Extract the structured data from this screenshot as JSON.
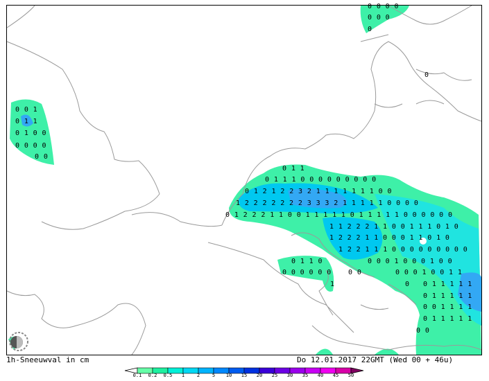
{
  "map": {
    "grid_rows": [
      "0 0 0 0",
      "0 0 0",
      "0",
      "0",
      "0 0 1",
      "0 1 1",
      "0 1 0 0",
      "0 0 0 0",
      "0 0",
      "0 1 1",
      "0 1 1 1 0 0 0 0 0 0 0 0 0",
      "0 1 2 1 2 2 3 2 1 1 1 1 1 1 1 0 0",
      "1 2 2 2 2 2 2 2 3 3 3 2 1 1 1 1 1 0 0 0 0",
      "0 1 2 2 2 1 1 0 0 1 1 1 1 1 0 1 1 1 1 1 0 0 0 0 0 0",
      "1 1 2 2 2 1 1 0 0 1 1 1 0 1 0",
      "1 2 2 2 1 1 0 0 0 1 1 0 1 0",
      "1 2 2 1 1 1 0 0 0 0 0 0 0 0 0",
      "0 1 1 0",
      "0 0 0 1 0 0 0 1 0 0",
      "0 0 0 0 0 0",
      "0 0",
      "0 0 0 1 0 0 1 1",
      "1",
      "0",
      "0 1 1 1 1 1",
      "0 1 1 1 1 1",
      "0 0 1 1 1 1",
      "0 1 1 1 1 1",
      "0 0"
    ]
  },
  "footer": {
    "left": "1h-Sneeuwval in cm",
    "right": "Do 12.01.2017 22GMT (Wed 00 + 46u)"
  },
  "colorbar": {
    "labels": [
      "0.1",
      "0.2",
      "0.5",
      "1",
      "2",
      "5",
      "10",
      "15",
      "20",
      "25",
      "30",
      "35",
      "40",
      "45",
      "50"
    ],
    "colors": [
      "#66ffa8",
      "#1ef0a0",
      "#00f0d8",
      "#00d8f4",
      "#00b4ff",
      "#0088ff",
      "#005cf0",
      "#0030e0",
      "#3a00d8",
      "#6c00e4",
      "#9a00ec",
      "#c800f4",
      "#f000f0",
      "#d800a8"
    ]
  }
}
